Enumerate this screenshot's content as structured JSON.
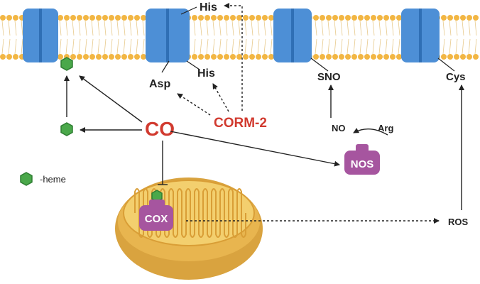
{
  "labels": {
    "co": "CO",
    "corm": "CORM-2",
    "his_top": "His",
    "his_bottom": "His",
    "asp": "Asp",
    "sno": "SNO",
    "cys": "Cys",
    "no": "NO",
    "arg": "Arg",
    "nos": "NOS",
    "cox": "COX",
    "ros": "ROS",
    "heme_legend": "-heme"
  },
  "colors": {
    "membrane_yellow": "#f2b643",
    "channel_blue": "#4d8fd6",
    "channel_dark": "#2f6fb5",
    "heme_green": "#4aa84a",
    "heme_stroke": "#2e7d32",
    "enzyme_purple": "#a6559f",
    "co_red": "#d13a2f",
    "mito_outer": "#e4b04a",
    "mito_inner": "#f3cf6e",
    "arrow": "#222222"
  }
}
